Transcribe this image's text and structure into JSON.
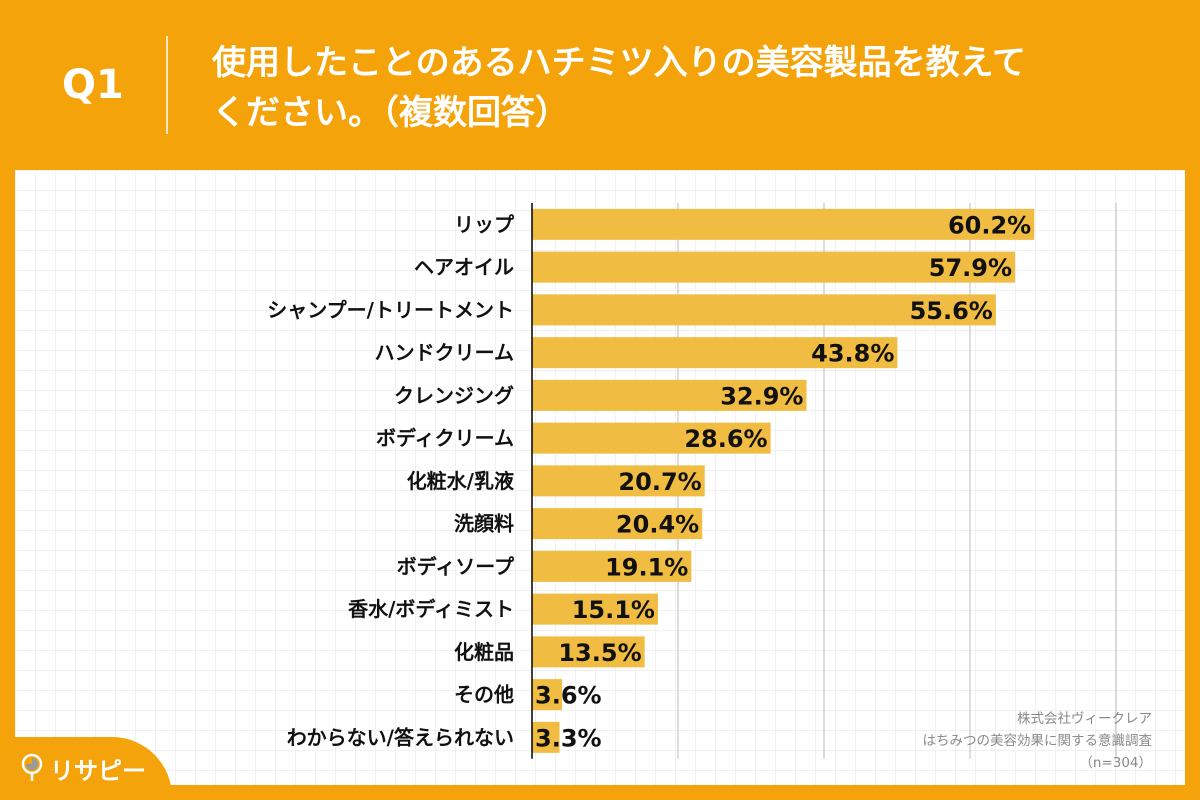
{
  "header": {
    "question": "Q1",
    "title_line1": "使用したことのあるハチミツ入りの美容製品を教えて",
    "title_line2": "ください。（複数回答）"
  },
  "colors": {
    "background": "#F5A30A",
    "bar": "#F0BC42",
    "axis": "#000000",
    "grid": "#BBBBBB"
  },
  "chart_data": {
    "type": "bar",
    "orientation": "horizontal",
    "categories": [
      "リップ",
      "ヘアオイル",
      "シャンプー/トリートメント",
      "ハンドクリーム",
      "クレンジング",
      "ボディクリーム",
      "化粧水/乳液",
      "洗顔料",
      "ボディソープ",
      "香水/ボディミスト",
      "化粧品",
      "その他",
      "わからない/答えられない"
    ],
    "values": [
      60.2,
      57.9,
      55.6,
      43.8,
      32.9,
      28.6,
      20.7,
      20.4,
      19.1,
      15.1,
      13.5,
      3.6,
      3.3
    ],
    "labels": [
      "60.2%",
      "57.9%",
      "55.6%",
      "43.8%",
      "32.9%",
      "28.6%",
      "20.7%",
      "20.4%",
      "19.1%",
      "15.1%",
      "13.5%",
      "3.6%",
      "3.3%"
    ],
    "xlim": [
      0,
      70
    ],
    "grid": true,
    "unit": "%"
  },
  "footer": {
    "company": "株式会社ヴィークレア",
    "survey": "はちみつの美容効果に関する意識調査",
    "sample": "（n=304）"
  },
  "logo": {
    "text": "リサピー",
    "icon": "pin-pie-icon"
  }
}
